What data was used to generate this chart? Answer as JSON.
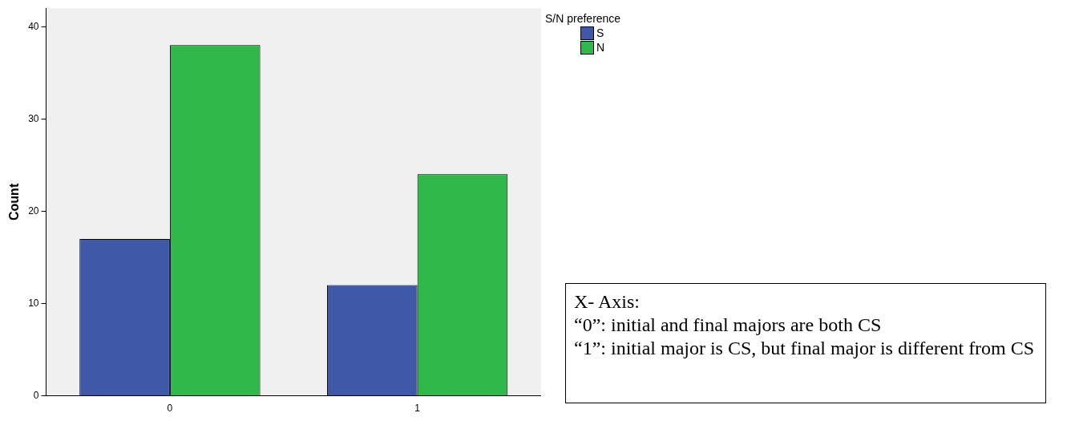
{
  "chart_data": {
    "type": "bar",
    "ylabel": "Count",
    "legend_title": "S/N preference",
    "legend": "top right",
    "grid": false,
    "categories": [
      "0",
      "1"
    ],
    "series": [
      {
        "name": "S",
        "color": "#3f59a8",
        "values": [
          17,
          12
        ]
      },
      {
        "name": "N",
        "color": "#30b84b",
        "values": [
          38,
          24
        ]
      }
    ],
    "ylim": [
      0,
      42
    ],
    "yticks": [
      0,
      10,
      20,
      30,
      40
    ],
    "annotations": [
      "X- Axis:",
      "“0”: initial and final majors are both CS",
      "“1”: initial major is CS, but final major is different from CS"
    ]
  }
}
